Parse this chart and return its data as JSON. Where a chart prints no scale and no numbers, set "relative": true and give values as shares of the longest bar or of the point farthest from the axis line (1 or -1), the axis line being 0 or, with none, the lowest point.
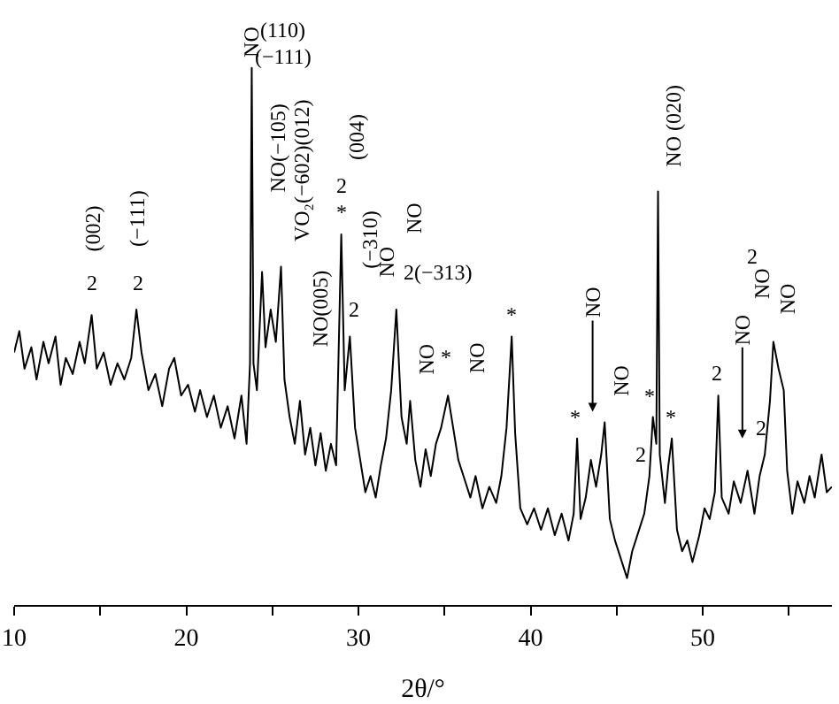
{
  "chart_data": {
    "type": "line",
    "relative": true,
    "xlabel": "2θ/°",
    "xlim": [
      10,
      57.5
    ],
    "xticks": [
      10,
      {
        "value": 15,
        "label": null
      },
      20,
      {
        "value": 25,
        "label": null
      },
      30,
      {
        "value": 35,
        "label": null
      },
      40,
      {
        "value": 45,
        "label": null
      },
      50,
      {
        "value": 55,
        "label": null
      }
    ],
    "marker": "none",
    "line_style": "solid",
    "series": [
      {
        "color": "#000000",
        "x": [
          10.0,
          10.3,
          10.6,
          11.0,
          11.3,
          11.7,
          12.0,
          12.4,
          12.7,
          13.0,
          13.4,
          13.8,
          14.1,
          14.5,
          14.8,
          15.2,
          15.6,
          16.0,
          16.4,
          16.8,
          17.1,
          17.4,
          17.8,
          18.2,
          18.6,
          19.0,
          19.3,
          19.7,
          20.1,
          20.5,
          20.8,
          21.2,
          21.6,
          22.0,
          22.4,
          22.8,
          23.2,
          23.5,
          23.7,
          23.8,
          23.9,
          24.1,
          24.4,
          24.6,
          24.9,
          25.2,
          25.5,
          25.7,
          26.0,
          26.3,
          26.6,
          26.9,
          27.2,
          27.5,
          27.8,
          28.1,
          28.4,
          28.7,
          29.0,
          29.2,
          29.5,
          29.8,
          30.1,
          30.4,
          30.7,
          31.0,
          31.3,
          31.6,
          31.9,
          32.2,
          32.5,
          32.8,
          33.0,
          33.3,
          33.6,
          33.9,
          34.2,
          34.5,
          34.8,
          35.2,
          35.5,
          35.8,
          36.1,
          36.5,
          36.8,
          37.2,
          37.6,
          38.0,
          38.3,
          38.6,
          38.9,
          39.1,
          39.4,
          39.8,
          40.2,
          40.6,
          41.0,
          41.4,
          41.8,
          42.2,
          42.5,
          42.7,
          42.9,
          43.2,
          43.5,
          43.8,
          44.1,
          44.3,
          44.6,
          44.9,
          45.2,
          45.6,
          45.9,
          46.2,
          46.6,
          46.9,
          47.1,
          47.3,
          47.4,
          47.5,
          47.8,
          48.0,
          48.2,
          48.5,
          48.8,
          49.1,
          49.4,
          49.8,
          50.1,
          50.4,
          50.7,
          50.9,
          51.1,
          51.5,
          51.8,
          52.2,
          52.6,
          53.0,
          53.3,
          53.6,
          53.9,
          54.1,
          54.4,
          54.7,
          54.9,
          55.2,
          55.5,
          55.9,
          56.2,
          56.5,
          56.9,
          57.2,
          57.5
        ],
        "values": [
          0.47,
          0.51,
          0.44,
          0.48,
          0.42,
          0.49,
          0.45,
          0.5,
          0.41,
          0.46,
          0.43,
          0.49,
          0.45,
          0.54,
          0.44,
          0.47,
          0.41,
          0.45,
          0.42,
          0.46,
          0.55,
          0.47,
          0.4,
          0.43,
          0.37,
          0.44,
          0.46,
          0.39,
          0.41,
          0.36,
          0.4,
          0.35,
          0.39,
          0.33,
          0.37,
          0.31,
          0.39,
          0.3,
          0.45,
          1.0,
          0.45,
          0.4,
          0.62,
          0.48,
          0.55,
          0.49,
          0.63,
          0.42,
          0.35,
          0.3,
          0.38,
          0.28,
          0.33,
          0.26,
          0.32,
          0.25,
          0.3,
          0.26,
          0.69,
          0.4,
          0.5,
          0.33,
          0.27,
          0.21,
          0.24,
          0.2,
          0.26,
          0.31,
          0.4,
          0.55,
          0.35,
          0.3,
          0.38,
          0.27,
          0.22,
          0.29,
          0.24,
          0.3,
          0.33,
          0.39,
          0.33,
          0.27,
          0.24,
          0.2,
          0.24,
          0.18,
          0.22,
          0.19,
          0.24,
          0.33,
          0.5,
          0.32,
          0.18,
          0.15,
          0.18,
          0.14,
          0.18,
          0.13,
          0.17,
          0.12,
          0.17,
          0.31,
          0.16,
          0.2,
          0.27,
          0.22,
          0.28,
          0.34,
          0.16,
          0.12,
          0.09,
          0.05,
          0.1,
          0.13,
          0.17,
          0.24,
          0.35,
          0.3,
          0.77,
          0.28,
          0.19,
          0.26,
          0.31,
          0.14,
          0.1,
          0.12,
          0.08,
          0.13,
          0.18,
          0.16,
          0.21,
          0.39,
          0.2,
          0.17,
          0.23,
          0.19,
          0.25,
          0.17,
          0.24,
          0.28,
          0.38,
          0.49,
          0.44,
          0.4,
          0.25,
          0.17,
          0.23,
          0.19,
          0.24,
          0.2,
          0.28,
          0.21,
          0.22
        ]
      }
    ],
    "annotations": [
      "(002)",
      "2",
      "(−111)",
      "2",
      "NO",
      "(110)",
      "(−111)",
      "NO(−105)",
      "VO₂(−602)(012)",
      "NO(005)",
      "(004)",
      "2",
      "*",
      "2",
      "(−310)",
      "NO",
      "NO",
      "2(−313)",
      "NO",
      "*",
      "NO",
      "*",
      "*",
      "NO",
      "NO",
      "*",
      "2",
      "*",
      "NO (020)",
      "2",
      "NO",
      "2",
      "2",
      "NO",
      "NO"
    ]
  }
}
